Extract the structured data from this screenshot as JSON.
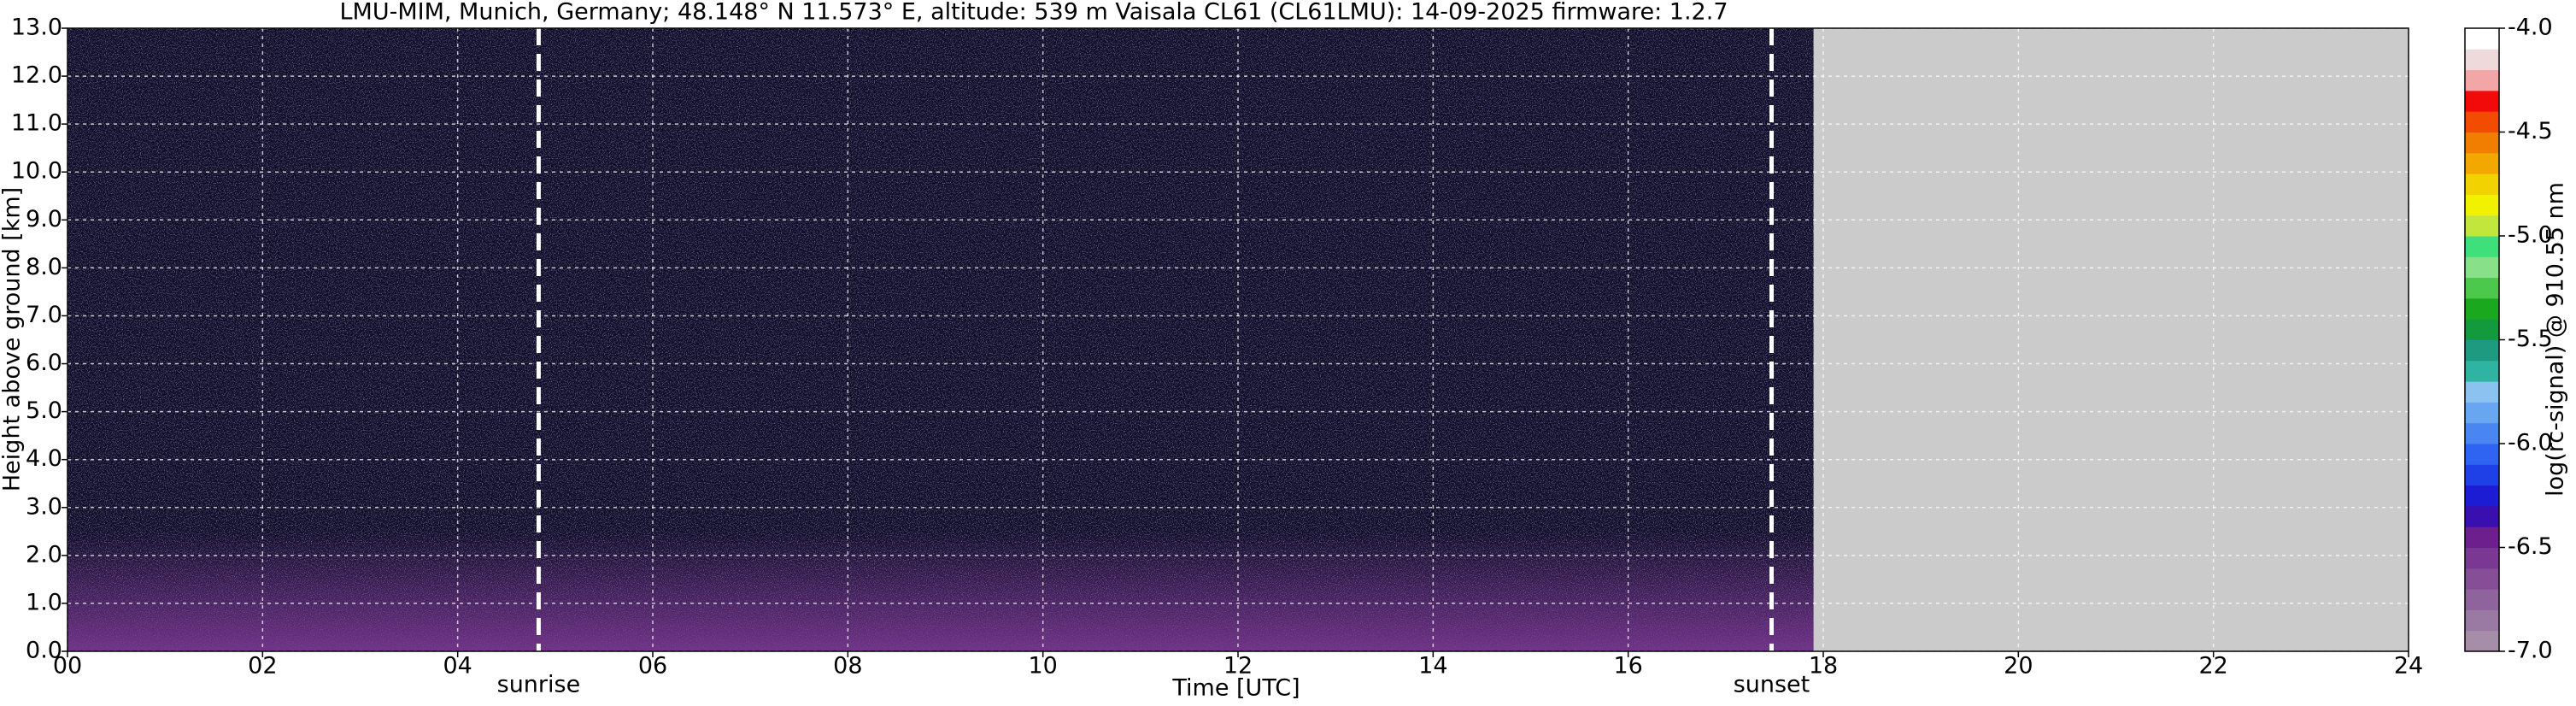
{
  "chart_data": {
    "type": "heatmap",
    "title": "LMU-MIM, Munich, Germany; 48.148° N 11.573° E, altitude: 539 m    Vaisala CL61 (CL61LMU): 14-09-2025    firmware: 1.2.7",
    "x_label": "Time [UTC]",
    "y_label": "Height above ground [km]",
    "xlim": [
      0,
      24
    ],
    "xticks": [
      {
        "value": 0,
        "label": "00"
      },
      {
        "value": 2,
        "label": "02"
      },
      {
        "value": 4,
        "label": "04"
      },
      {
        "value": 6,
        "label": "06"
      },
      {
        "value": 8,
        "label": "08"
      },
      10,
      12,
      14,
      16,
      18,
      20,
      22,
      24
    ],
    "ylim": [
      0,
      13
    ],
    "yticks": [
      {
        "value": 0,
        "label": "0.0"
      },
      {
        "value": 1,
        "label": "1.0"
      },
      {
        "value": 2,
        "label": "2.0"
      },
      {
        "value": 3,
        "label": "3.0"
      },
      {
        "value": 4,
        "label": "4.0"
      },
      {
        "value": 5,
        "label": "5.0"
      },
      {
        "value": 6,
        "label": "6.0"
      },
      {
        "value": 7,
        "label": "7.0"
      },
      {
        "value": 8,
        "label": "8.0"
      },
      {
        "value": 9,
        "label": "9.0"
      },
      {
        "value": 10,
        "label": "10.0"
      },
      {
        "value": 11,
        "label": "11.0"
      },
      {
        "value": 12,
        "label": "12.0"
      },
      {
        "value": 13,
        "label": "13.0"
      }
    ],
    "grid": true,
    "data_end": 17.9,
    "no_data_color": "#cbcbcb",
    "annotations": [
      {
        "text": "sunrise",
        "x": 4.83
      },
      {
        "text": "sunset",
        "x": 17.47
      }
    ],
    "colorbar": {
      "label": "log(rc-signal) @ 910.55 nm",
      "lim": [
        -7.0,
        -4.0
      ],
      "ticks": [
        {
          "value": -7.0,
          "label": "-7.0"
        },
        {
          "value": -6.5,
          "label": "-6.5"
        },
        {
          "value": -6.0,
          "label": "-6.0"
        },
        {
          "value": -5.5,
          "label": "-5.5"
        },
        {
          "value": -5.0,
          "label": "-5.0"
        },
        {
          "value": -4.5,
          "label": "-4.5"
        },
        {
          "value": -4.0,
          "label": "-4.0"
        }
      ],
      "colors": [
        "#a68ea8",
        "#9a7aa2",
        "#8f649c",
        "#854e97",
        "#7a3892",
        "#6d1f8e",
        "#3a0fb0",
        "#1c1cd4",
        "#1f40e6",
        "#2f63f2",
        "#4a86f2",
        "#68a6f2",
        "#8cc2f0",
        "#2fb4a4",
        "#1e9a80",
        "#129a3c",
        "#1aa81e",
        "#4cc84c",
        "#88e088",
        "#3ee07c",
        "#c2e63c",
        "#f2f200",
        "#f2d200",
        "#f2a800",
        "#f27e00",
        "#f24c00",
        "#f20a0a",
        "#f2a6a6",
        "#eedada",
        "#ffffff"
      ]
    }
  }
}
